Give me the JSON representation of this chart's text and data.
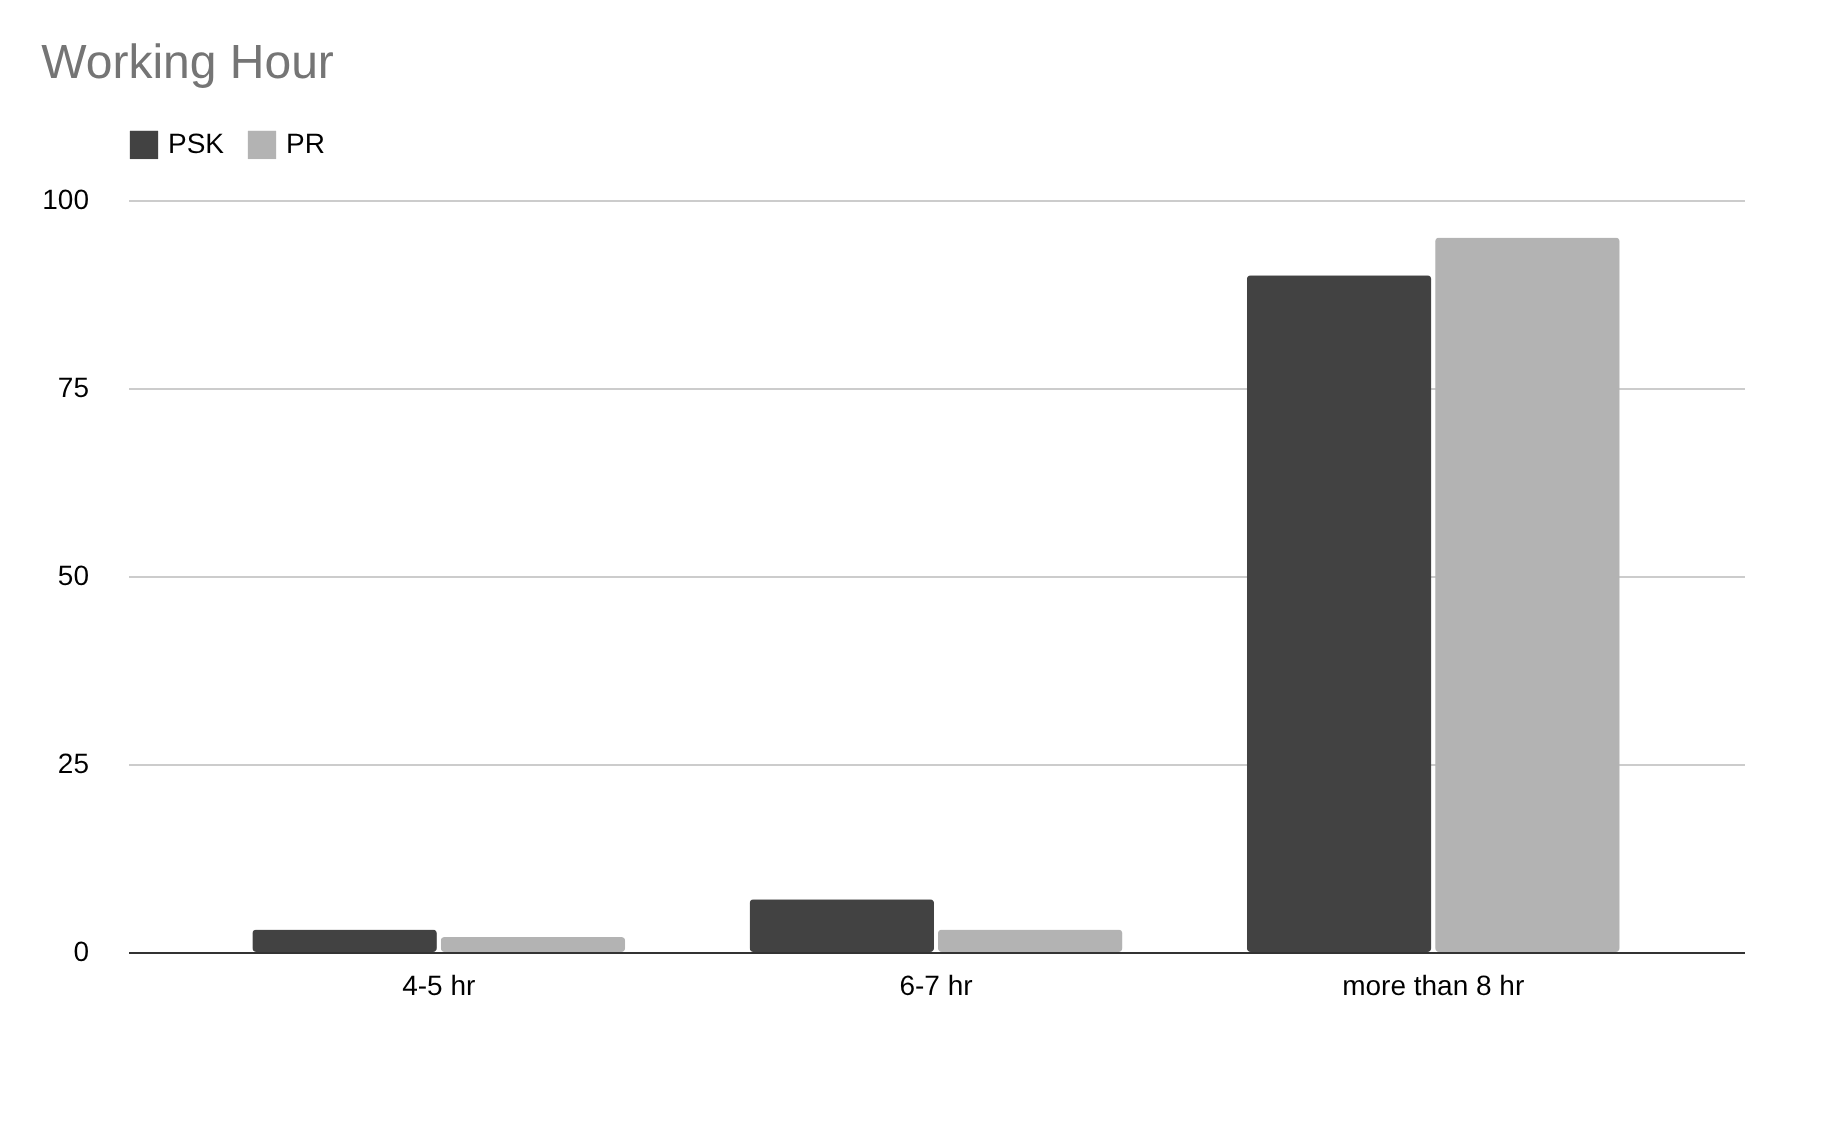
{
  "chart_data": {
    "type": "bar",
    "title": "Working Hour",
    "categories": [
      "4-5 hr",
      "6-7 hr",
      "more than 8 hr"
    ],
    "series": [
      {
        "name": "PSK",
        "color": "#424242",
        "values": [
          3,
          7,
          90
        ]
      },
      {
        "name": "PR",
        "color": "#b3b3b3",
        "values": [
          2,
          3,
          95
        ]
      }
    ],
    "ylim": [
      0,
      100
    ],
    "yticks": [
      0,
      25,
      50,
      75,
      100
    ],
    "grid": "y",
    "legend": "top"
  }
}
